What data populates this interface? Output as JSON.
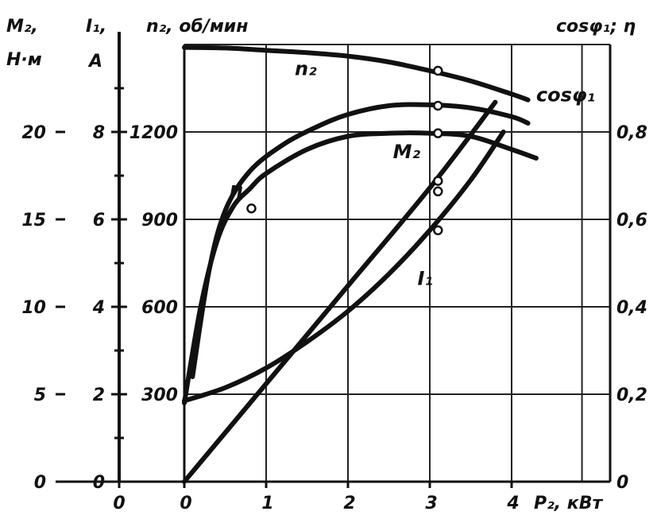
{
  "chart_data": {
    "type": "line",
    "x": {
      "label": "P₂, кВт",
      "ticks": [
        0,
        1,
        2,
        3,
        4
      ],
      "range": [
        0,
        5.2
      ]
    },
    "left_axes": [
      {
        "key": "M2",
        "title_line1": "M₂,",
        "title_line2": "Н·м",
        "ticks": [
          0,
          5,
          10,
          15,
          20
        ],
        "range": [
          0,
          25
        ]
      },
      {
        "key": "I1",
        "title_line1": "I₁,",
        "title_line2": "A",
        "ticks": [
          0,
          2,
          4,
          6,
          8
        ],
        "range": [
          0,
          10
        ]
      },
      {
        "key": "n2",
        "title_line1": "n₂, об/мин",
        "title_line2": "",
        "ticks": [
          0,
          300,
          600,
          900,
          1200
        ],
        "range": [
          0,
          1500
        ]
      }
    ],
    "right_axis": {
      "key": "ratio",
      "title": "cosφ₁; η",
      "ticks": [
        "0",
        "0,2",
        "0,4",
        "0,6",
        "0,8"
      ],
      "tick_values": [
        0,
        0.2,
        0.4,
        0.6,
        0.8
      ],
      "range": [
        0,
        1.0
      ]
    },
    "second_x_tick": "0",
    "grid": true,
    "series": [
      {
        "name": "n₂",
        "axis": "n2",
        "label_at": [
          1.35,
          1395
        ],
        "points": [
          [
            0,
            1490
          ],
          [
            0.5,
            1488
          ],
          [
            1,
            1480
          ],
          [
            1.5,
            1472
          ],
          [
            2,
            1460
          ],
          [
            2.5,
            1440
          ],
          [
            3,
            1410
          ],
          [
            3.5,
            1375
          ],
          [
            4,
            1330
          ],
          [
            4.2,
            1310
          ]
        ]
      },
      {
        "name": "cosφ₁",
        "axis": "ratio",
        "label_at": [
          4.3,
          0.87
        ],
        "points": [
          [
            0.1,
            0.24
          ],
          [
            0.3,
            0.48
          ],
          [
            0.5,
            0.62
          ],
          [
            0.8,
            0.71
          ],
          [
            1.2,
            0.77
          ],
          [
            1.6,
            0.81
          ],
          [
            2,
            0.84
          ],
          [
            2.5,
            0.86
          ],
          [
            3,
            0.862
          ],
          [
            3.5,
            0.855
          ],
          [
            4,
            0.835
          ],
          [
            4.2,
            0.82
          ]
        ]
      },
      {
        "name": "η",
        "axis": "ratio",
        "label_at": [
          0.55,
          0.655
        ],
        "points": [
          [
            0,
            0.18
          ],
          [
            0.2,
            0.4
          ],
          [
            0.4,
            0.55
          ],
          [
            0.6,
            0.63
          ],
          [
            0.8,
            0.67
          ],
          [
            1,
            0.705
          ],
          [
            1.5,
            0.76
          ],
          [
            2,
            0.79
          ],
          [
            2.5,
            0.797
          ],
          [
            3,
            0.797
          ],
          [
            3.5,
            0.79
          ],
          [
            4,
            0.76
          ],
          [
            4.3,
            0.74
          ]
        ]
      },
      {
        "name": "M₂",
        "axis": "M2",
        "label_at": [
          2.55,
          18.5
        ],
        "points": [
          [
            0,
            0
          ],
          [
            1,
            5.6
          ],
          [
            2,
            11.2
          ],
          [
            3,
            16.8
          ],
          [
            3.8,
            21.7
          ]
        ]
      },
      {
        "name": "I₁",
        "axis": "I1",
        "label_at": [
          2.85,
          4.5
        ],
        "points": [
          [
            0,
            1.85
          ],
          [
            0.5,
            2.15
          ],
          [
            1,
            2.6
          ],
          [
            1.5,
            3.2
          ],
          [
            2,
            3.9
          ],
          [
            2.5,
            4.75
          ],
          [
            3,
            5.75
          ],
          [
            3.5,
            6.9
          ],
          [
            3.9,
            8.0
          ]
        ]
      }
    ],
    "markers": [
      {
        "series": "n₂",
        "x": 3.1,
        "y": 1410,
        "axis": "n2"
      },
      {
        "series": "cosφ₁",
        "x": 3.1,
        "y": 0.86,
        "axis": "ratio"
      },
      {
        "series": "η",
        "x": 3.1,
        "y": 0.797,
        "axis": "ratio"
      },
      {
        "series": "M₂",
        "x": 3.1,
        "y": 17.2,
        "axis": "M2"
      },
      {
        "series": "M₂",
        "x": 3.1,
        "y": 16.6,
        "axis": "M2"
      },
      {
        "series": "I₁",
        "x": 3.1,
        "y": 5.75,
        "axis": "I1"
      },
      {
        "series": "η",
        "x": 0.82,
        "y": 0.625,
        "axis": "ratio"
      }
    ]
  }
}
